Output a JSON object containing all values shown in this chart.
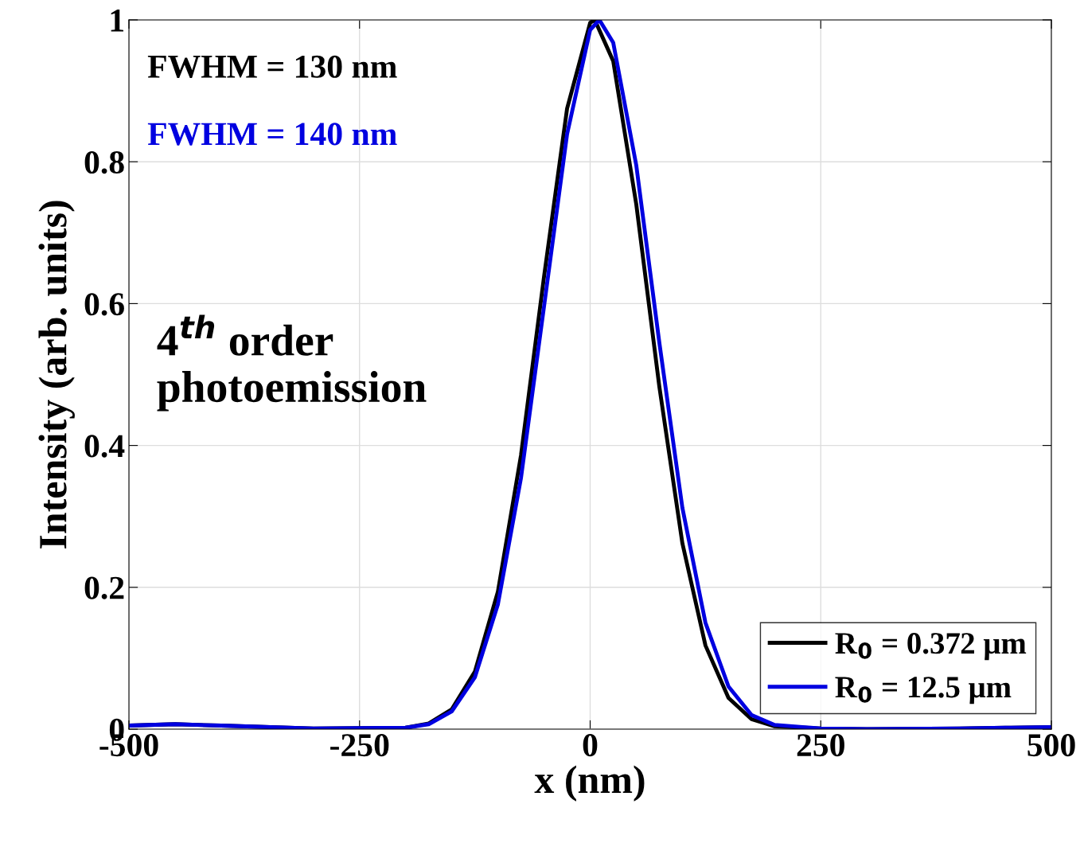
{
  "chart_data": {
    "type": "line",
    "xlabel": "x (nm)",
    "ylabel": "Intensity (arb. units)",
    "xlim": [
      -500,
      500
    ],
    "xticks": [
      -500,
      -250,
      0,
      250,
      500
    ],
    "ylim": [
      0,
      1
    ],
    "yticks": [
      0,
      0.2,
      0.4,
      0.6,
      0.8,
      1
    ],
    "grid": true,
    "legend": "bottom right",
    "marker": "none",
    "line_style": "solid",
    "annotations": [
      "FWHM = 130 nm",
      "FWHM = 140 nm",
      "4$^{th}$ order\nphotoemission"
    ],
    "series": [
      {
        "name": "R$_{0}$ = 0.372 μm",
        "color": "#000000",
        "x": [
          -500,
          -450,
          -400,
          -300,
          -200,
          -175,
          -150,
          -125,
          -100,
          -75,
          -50,
          -25,
          0,
          5,
          25,
          50,
          75,
          100,
          125,
          150,
          175,
          200,
          250,
          300,
          400,
          450,
          500
        ],
        "values": [
          0.005,
          0.007,
          0.005,
          0.001,
          0.002,
          0.008,
          0.028,
          0.081,
          0.194,
          0.386,
          0.638,
          0.875,
          0.996,
          1.0,
          0.942,
          0.74,
          0.483,
          0.262,
          0.118,
          0.044,
          0.014,
          0.004,
          0.001,
          0.0,
          0.001,
          0.002,
          0.003
        ]
      },
      {
        "name": "R$_{0}$ = 12.5 μm",
        "color": "#0000e0",
        "x": [
          -500,
          -450,
          -400,
          -300,
          -200,
          -175,
          -150,
          -125,
          -100,
          -75,
          -50,
          -25,
          0,
          10,
          25,
          50,
          75,
          100,
          125,
          150,
          175,
          200,
          250,
          300,
          400,
          450,
          500
        ],
        "values": [
          0.005,
          0.007,
          0.005,
          0.001,
          0.002,
          0.007,
          0.025,
          0.073,
          0.176,
          0.354,
          0.596,
          0.839,
          0.986,
          1.0,
          0.968,
          0.795,
          0.545,
          0.312,
          0.15,
          0.06,
          0.02,
          0.006,
          0.001,
          0.0,
          0.001,
          0.002,
          0.003
        ]
      }
    ]
  }
}
